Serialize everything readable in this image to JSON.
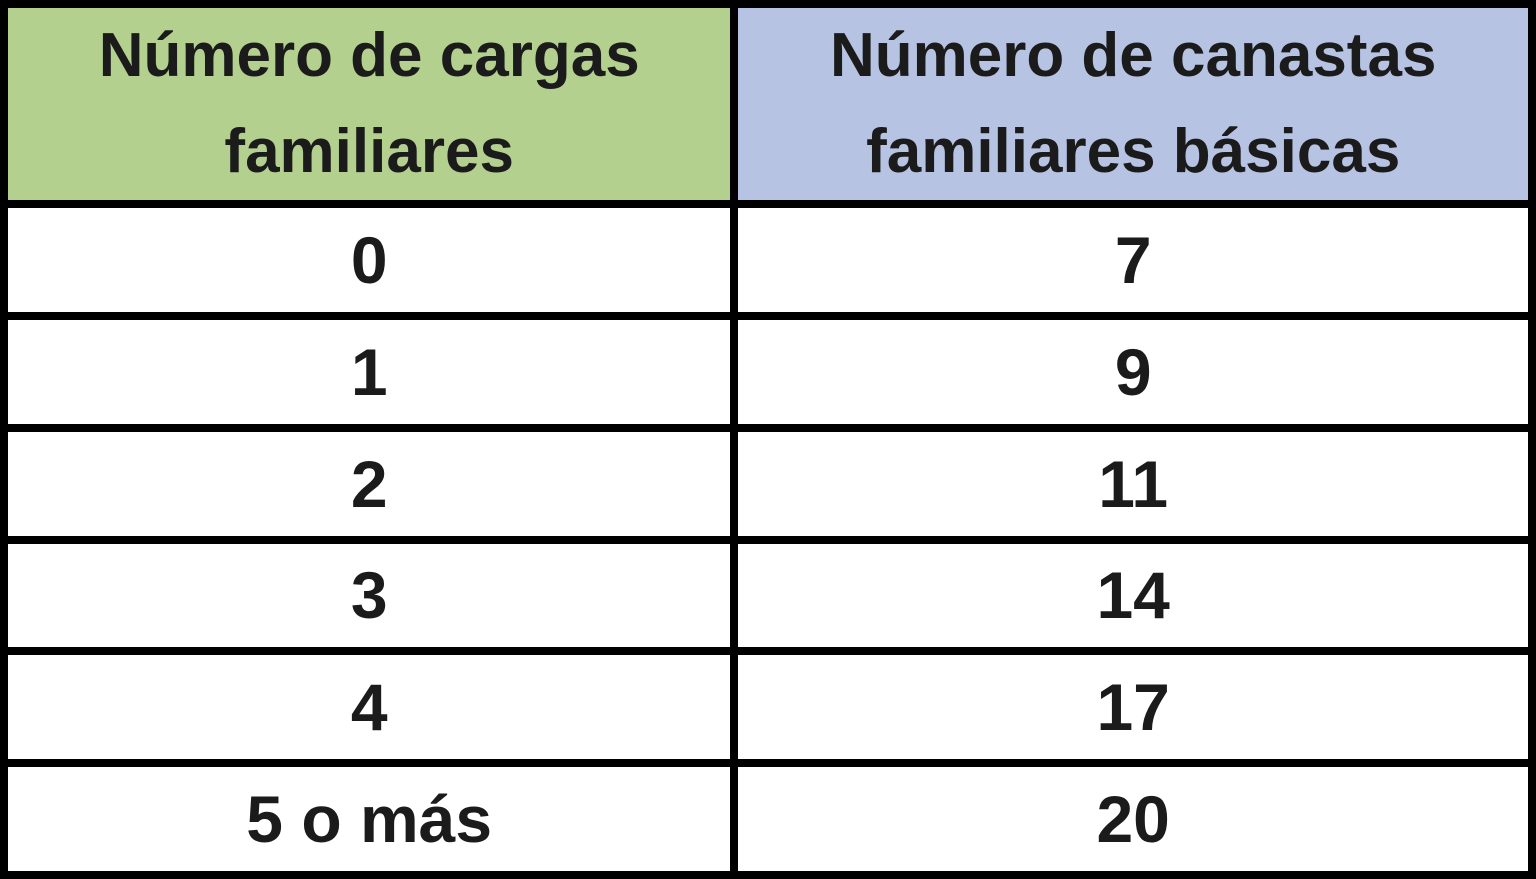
{
  "chart_data": {
    "type": "table",
    "title": "",
    "columns": [
      "Número de cargas familiares",
      "Número de canastas familiares básicas"
    ],
    "rows": [
      [
        "0",
        "7"
      ],
      [
        "1",
        "9"
      ],
      [
        "2",
        "11"
      ],
      [
        "3",
        "14"
      ],
      [
        "4",
        "17"
      ],
      [
        "5 o más",
        "20"
      ]
    ]
  },
  "colors": {
    "header_left_bg": "#b3d08f",
    "header_right_bg": "#b7c3e3",
    "row_bg": "#ffffff",
    "border": "#000000",
    "text": "#1b1b1b"
  }
}
